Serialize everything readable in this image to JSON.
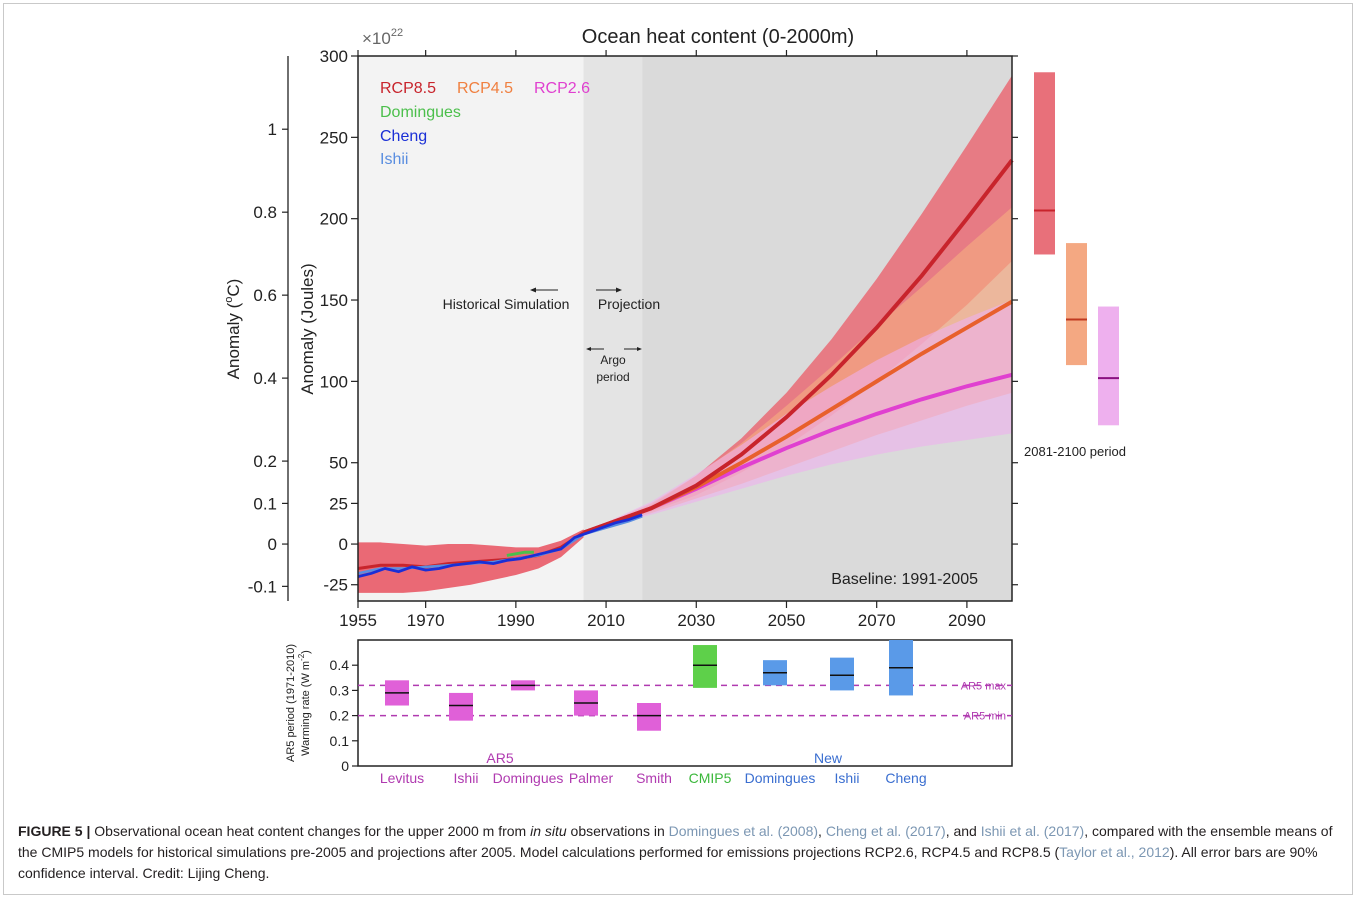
{
  "figure": {
    "title": "Ocean heat content (0-2000m)",
    "exponent_base": "×10",
    "exponent_power": "22",
    "ylabel_joules": "Anomaly (Joules)",
    "ylabel_celsius_pre": "Anomaly (",
    "ylabel_celsius_sup": "o",
    "ylabel_celsius_post": "C)",
    "legend": [
      {
        "label": "RCP8.5",
        "color": "#c8242c"
      },
      {
        "label": "RCP4.5",
        "color": "#f08040"
      },
      {
        "label": "RCP2.6",
        "color": "#e040d0"
      },
      {
        "label": "Domingues",
        "color": "#4bbf4b"
      },
      {
        "label": "Cheng",
        "color": "#1a2fd6"
      },
      {
        "label": "Ishii",
        "color": "#5a8ee0"
      }
    ],
    "annotations": {
      "historical": "Historical Simulation",
      "projection": "Projection",
      "argo_line1": "Argo",
      "argo_line2": "period",
      "baseline": "Baseline: 1991-2005",
      "period_label": "2081-2100 period"
    },
    "colors": {
      "rcp85": "#c8242c",
      "rcp45": "#e8602c",
      "rcp26": "#e040d0",
      "band85": "#e8707a",
      "band45": "#f4a882",
      "band26": "#eeb0ee",
      "historical_band": "#e8505e",
      "cheng": "#1a2fd6",
      "domingues": "#4bbf4b",
      "ishii": "#5a8ee0",
      "bg_historical": "#f3f3f3",
      "bg_argo": "#e4e4e4",
      "bg_projection": "#dadada"
    }
  },
  "chart_data": [
    {
      "type": "line",
      "title": "Ocean heat content (0-2000m)",
      "xlabel": "",
      "ylabel": "Anomaly (Joules)",
      "y_multiplier": "×10^22",
      "xlim": [
        1955,
        2100
      ],
      "ylim": [
        -35,
        300
      ],
      "x_ticks": [
        1955,
        1970,
        1990,
        2010,
        2030,
        2050,
        2070,
        2090
      ],
      "y_ticks": [
        -25,
        0,
        25,
        50,
        100,
        150,
        200,
        250,
        300
      ],
      "y2_label": "Anomaly (oC)",
      "y2_ticks": [
        {
          "label": "-0.1",
          "y": -26
        },
        {
          "label": "0",
          "y": 0
        },
        {
          "label": "0.1",
          "y": 25
        },
        {
          "label": "0.2",
          "y": 51
        },
        {
          "label": "0.4",
          "y": 102
        },
        {
          "label": "0.6",
          "y": 153
        },
        {
          "label": "0.8",
          "y": 204
        },
        {
          "label": "1",
          "y": 255
        }
      ],
      "shaded_periods": [
        {
          "label": "Historical Simulation",
          "from": 1955,
          "to": 2005
        },
        {
          "label": "Argo period",
          "from": 2005,
          "to": 2018
        },
        {
          "label": "Projection",
          "from": 2018,
          "to": 2100
        }
      ],
      "series": [
        {
          "name": "RCP8.5",
          "x": [
            2005,
            2020,
            2030,
            2040,
            2050,
            2060,
            2070,
            2080,
            2090,
            2100
          ],
          "y": [
            7,
            22,
            36,
            55,
            78,
            104,
            133,
            165,
            200,
            236
          ],
          "lower": [
            7,
            20,
            30,
            44,
            60,
            79,
            100,
            123,
            147,
            174
          ],
          "upper": [
            7,
            24,
            42,
            65,
            93,
            126,
            163,
            203,
            245,
            288
          ]
        },
        {
          "name": "RCP4.5",
          "x": [
            2005,
            2020,
            2030,
            2040,
            2050,
            2060,
            2070,
            2080,
            2090,
            2100
          ],
          "y": [
            7,
            22,
            35,
            50,
            66,
            83,
            100,
            117,
            133,
            149
          ],
          "lower": [
            7,
            19,
            28,
            37,
            47,
            57,
            67,
            76,
            85,
            93
          ],
          "upper": [
            7,
            25,
            42,
            62,
            85,
            109,
            134,
            158,
            183,
            207
          ]
        },
        {
          "name": "RCP2.6",
          "x": [
            2005,
            2020,
            2030,
            2040,
            2050,
            2060,
            2070,
            2080,
            2090,
            2100
          ],
          "y": [
            7,
            22,
            34,
            47,
            59,
            70,
            80,
            89,
            97,
            104
          ],
          "lower": [
            7,
            18,
            26,
            34,
            42,
            49,
            55,
            60,
            64,
            68
          ],
          "upper": [
            7,
            26,
            43,
            61,
            80,
            97,
            113,
            127,
            139,
            150
          ]
        },
        {
          "name": "Historical ensemble",
          "x": [
            1955,
            1960,
            1965,
            1970,
            1975,
            1980,
            1985,
            1990,
            1995,
            2000,
            2005
          ],
          "y": [
            -15,
            -13,
            -13,
            -14,
            -12,
            -11,
            -10,
            -9,
            -7,
            -2,
            7
          ],
          "lower": [
            -30,
            -30,
            -30,
            -29,
            -27,
            -25,
            -22,
            -19,
            -15,
            -8,
            4
          ],
          "upper": [
            1,
            1,
            0,
            -1,
            0,
            0,
            -1,
            -2,
            -2,
            2,
            9
          ]
        },
        {
          "name": "Cheng",
          "x": [
            1955,
            1958,
            1961,
            1964,
            1967,
            1970,
            1973,
            1976,
            1979,
            1982,
            1985,
            1988,
            1991,
            1994,
            1997,
            2000,
            2003,
            2006,
            2009,
            2012,
            2015,
            2018
          ],
          "y": [
            -20,
            -18,
            -15,
            -17,
            -14,
            -16,
            -15,
            -13,
            -12,
            -11,
            -12,
            -10,
            -9,
            -7,
            -5,
            -3,
            4,
            7,
            10,
            13,
            15,
            18
          ]
        },
        {
          "name": "Domingues",
          "x": [
            1988,
            1990,
            1992,
            1994
          ],
          "y": [
            -7,
            -6,
            -5,
            -5
          ]
        },
        {
          "name": "Ishii",
          "x": [
            1955,
            1960,
            1965,
            1970,
            1975,
            1980,
            1985,
            1990,
            1995,
            2000,
            2005,
            2010,
            2015,
            2018
          ],
          "y": [
            -18,
            -15,
            -15,
            -14,
            -13,
            -12,
            -11,
            -9,
            -7,
            -3,
            6,
            10,
            14,
            17
          ]
        }
      ],
      "period_boxes_2081_2100": [
        {
          "name": "RCP8.5",
          "low": 178,
          "mid": 205,
          "high": 290
        },
        {
          "name": "RCP4.5",
          "low": 110,
          "mid": 138,
          "high": 185
        },
        {
          "name": "RCP2.6",
          "low": 73,
          "mid": 102,
          "high": 146
        }
      ]
    },
    {
      "type": "bar",
      "ylabel_line1": "AR5 period (1971-2010)",
      "ylabel_line2": "Warming rate (W m",
      "ylabel_sup": "-2",
      "ylabel_post": ")",
      "ylim": [
        0,
        0.5
      ],
      "y_ticks": [
        0,
        0.1,
        0.2,
        0.3,
        0.4
      ],
      "group_labels": [
        {
          "label": "AR5",
          "color": "#b03ab0"
        },
        {
          "label": "New",
          "color": "#3a6ed0"
        }
      ],
      "reference_lines": [
        {
          "label": "AR5 max",
          "value": 0.32
        },
        {
          "label": "AR5 min",
          "value": 0.2
        }
      ],
      "categories": [
        "Levitus",
        "Ishii",
        "Domingues",
        "Palmer",
        "Smith",
        "CMIP5",
        "Domingues",
        "Ishii",
        "Cheng"
      ],
      "category_colors": [
        "#b03ab0",
        "#b03ab0",
        "#b03ab0",
        "#b03ab0",
        "#b03ab0",
        "#3cb83c",
        "#3a6ed0",
        "#3a6ed0",
        "#3a6ed0"
      ],
      "box_colors": [
        "#e060d8",
        "#e060d8",
        "#e060d8",
        "#e060d8",
        "#e060d8",
        "#5ed04a",
        "#5a9ae8",
        "#5a9ae8",
        "#5a9ae8"
      ],
      "low": [
        0.24,
        0.18,
        0.3,
        0.2,
        0.14,
        0.31,
        0.32,
        0.3,
        0.28
      ],
      "mid": [
        0.29,
        0.24,
        0.32,
        0.25,
        0.2,
        0.4,
        0.37,
        0.36,
        0.39
      ],
      "high": [
        0.34,
        0.29,
        0.34,
        0.3,
        0.25,
        0.48,
        0.42,
        0.43,
        0.5
      ]
    }
  ],
  "caption": {
    "label": "FIGURE 5 |",
    "t1": " Observational ocean heat content changes for the upper 2000 m from ",
    "t2_italic": "in situ",
    "t3": " observations in ",
    "ref1": "Domingues et al. (2008)",
    "t4": ", ",
    "ref2": "Cheng et al. (2017)",
    "t5": ", and ",
    "ref3": "Ishii et al. (2017)",
    "t6": ", compared with the ensemble means of the CMIP5 models for historical simulations pre-2005 and projections after 2005. Model calculations performed for emissions projections RCP2.6, RCP4.5 and RCP8.5 (",
    "ref4": "Taylor et al., 2012",
    "t7": "). All error bars are 90% confidence interval. Credit: Lijing Cheng."
  }
}
